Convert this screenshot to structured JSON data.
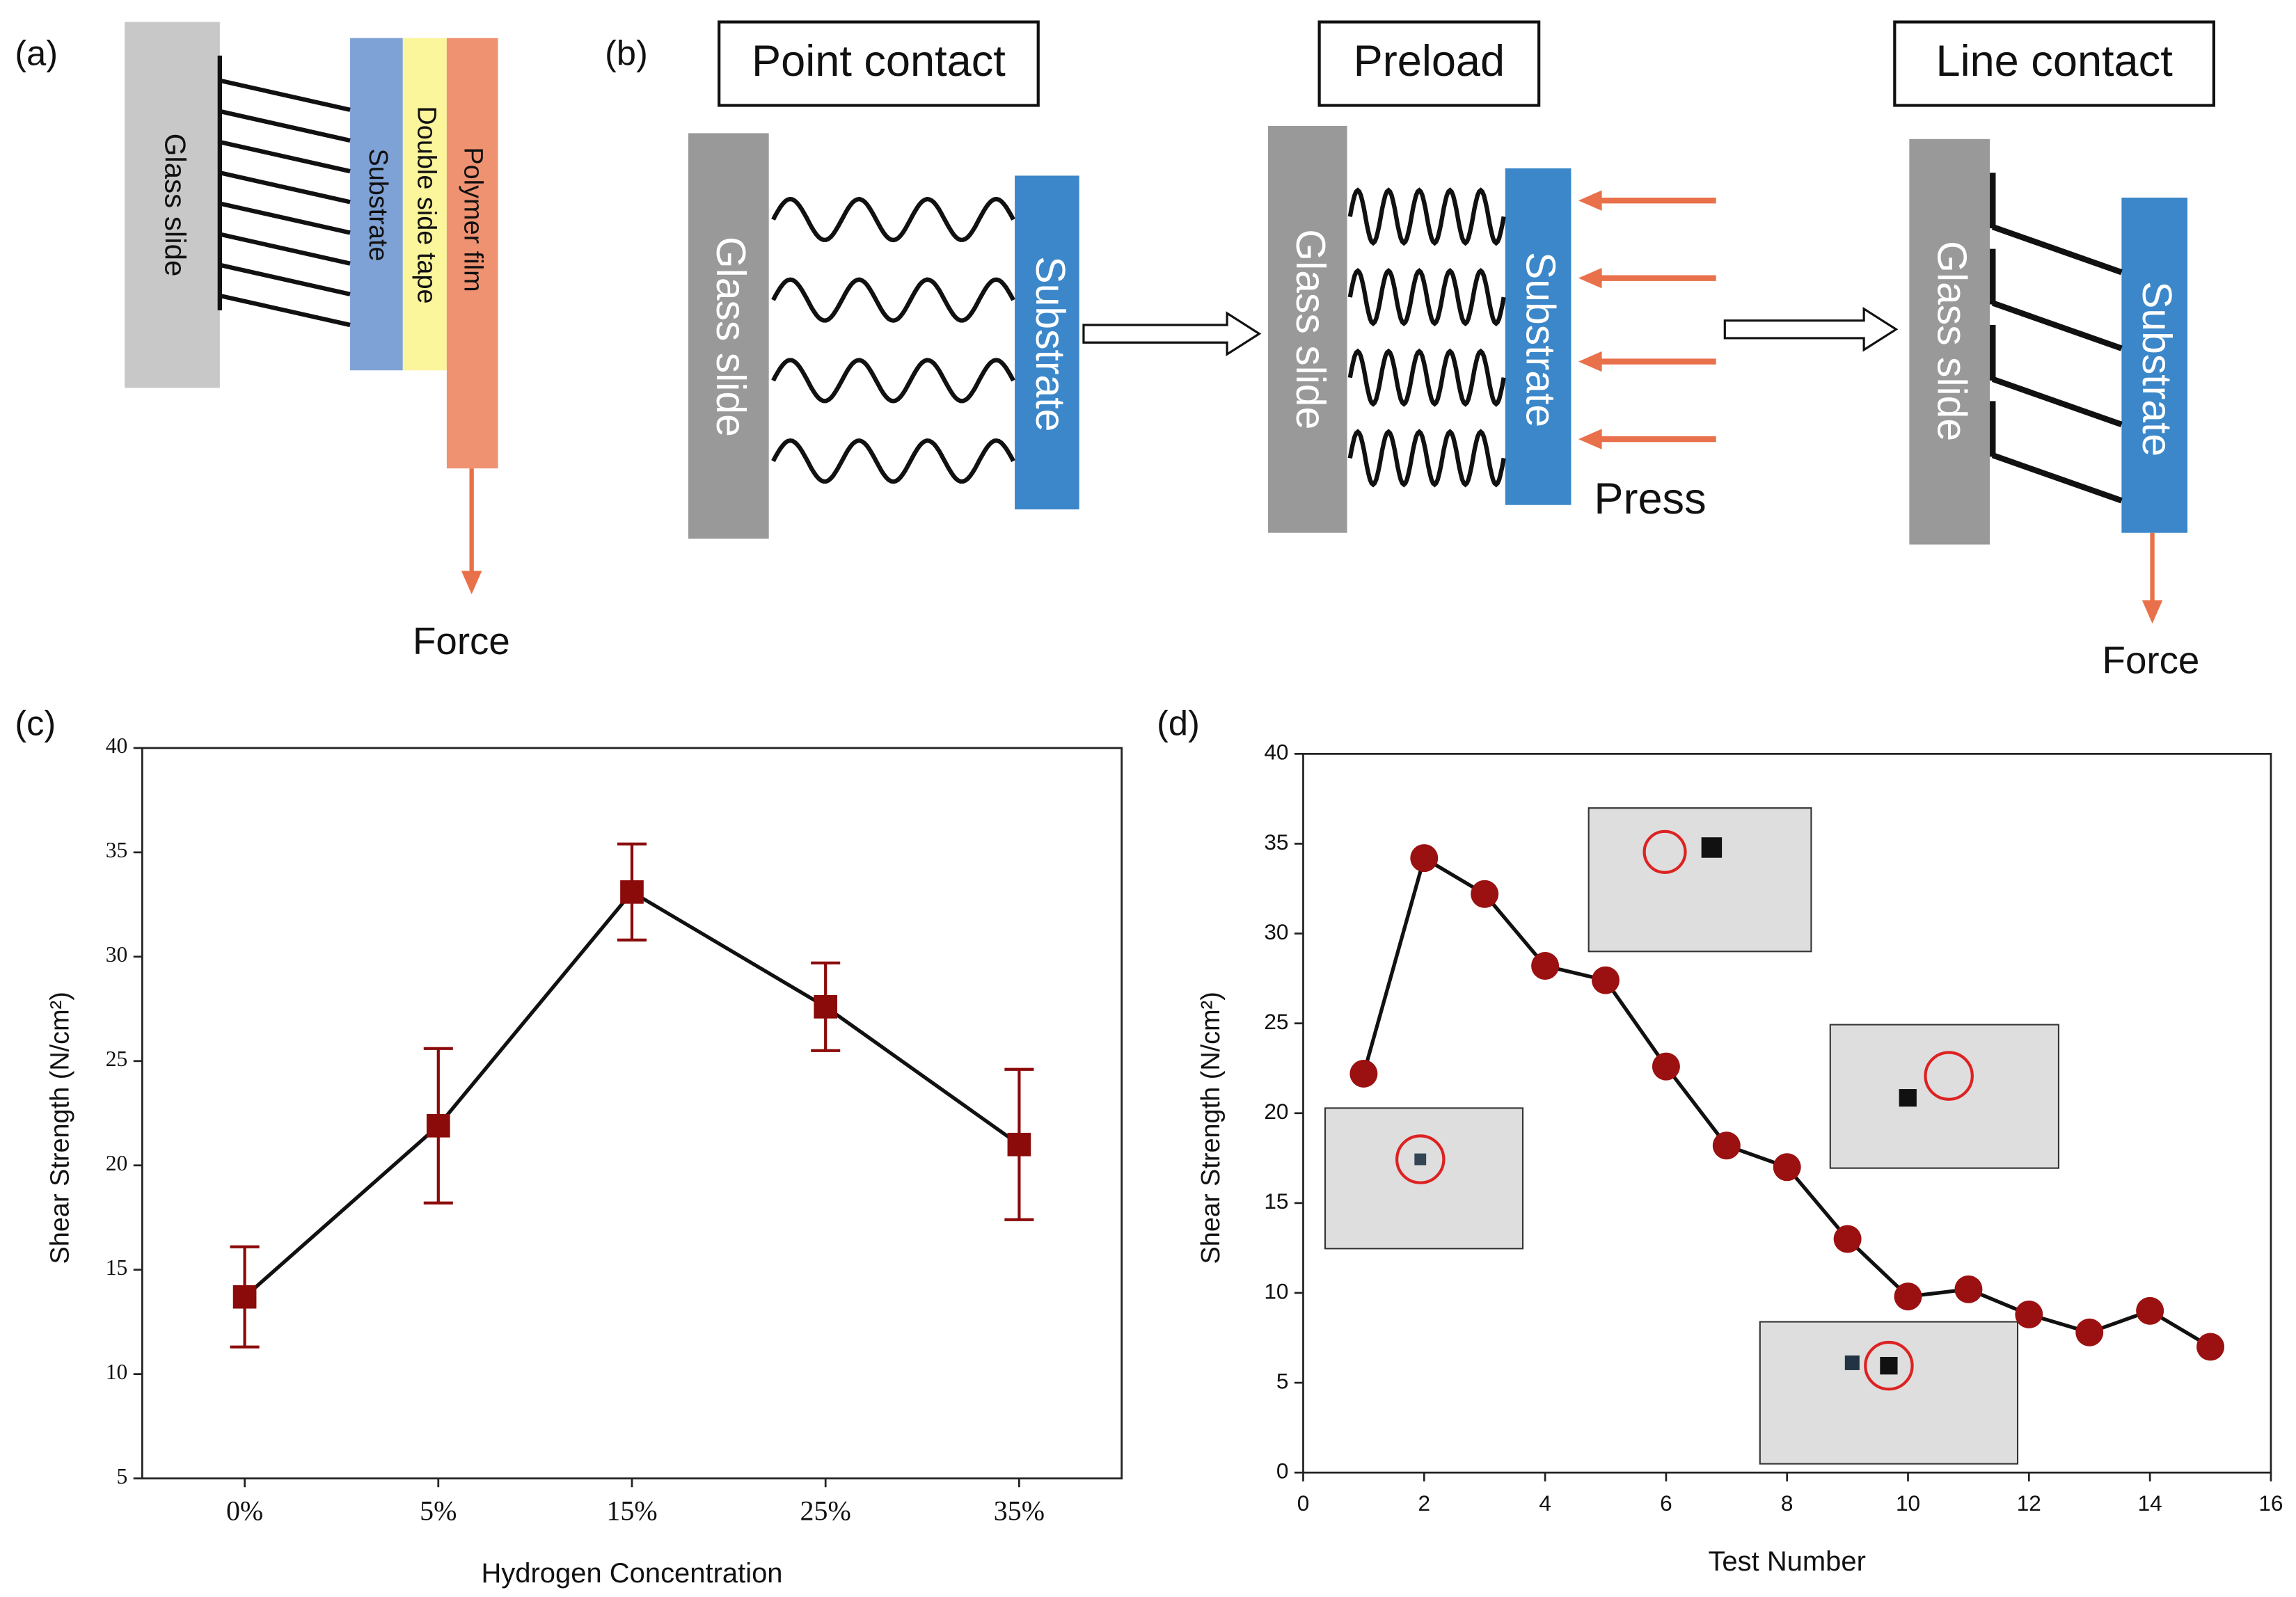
{
  "panel_labels": [
    "(a)",
    "(b)",
    "(c)",
    "(d)"
  ],
  "diagram_a": {
    "glass": "Glass slide",
    "substrate": "Substrate",
    "tape": "Double side tape",
    "film": "Polymer film",
    "force": "Force"
  },
  "diagram_b": {
    "stages": [
      {
        "title": "Point contact",
        "glass": "Glass slide",
        "substrate": "Substrate"
      },
      {
        "title": "Preload",
        "glass": "Glass slide",
        "substrate": "Substrate",
        "press": "Press"
      },
      {
        "title": "Line contact",
        "glass": "Glass slide",
        "substrate": "Substrate",
        "force": "Force"
      }
    ]
  },
  "chart_data": [
    {
      "type": "line",
      "x_label": "Hydrogen Concentration",
      "y_label": "Shear Strength (N/cm²)",
      "categories": [
        "0%",
        "5%",
        "15%",
        "25%",
        "35%"
      ],
      "series": [
        {
          "color": "#8b0a0a",
          "values": [
            13.7,
            21.9,
            33.1,
            27.6,
            21.0
          ],
          "errors": [
            2.4,
            3.7,
            2.3,
            2.1,
            3.6
          ]
        }
      ],
      "ylim": [
        5,
        40
      ],
      "yticks": [
        5,
        10,
        15,
        20,
        25,
        30,
        35,
        40
      ]
    },
    {
      "type": "scatter-line",
      "x_label": "Test Number",
      "y_label": "Shear Strength (N/cm²)",
      "x": [
        1,
        2,
        3,
        4,
        5,
        6,
        7,
        8,
        9,
        10,
        11,
        12,
        13,
        14,
        15
      ],
      "series": [
        {
          "color": "#9b1010",
          "values": [
            22.2,
            34.2,
            32.2,
            28.2,
            27.4,
            22.6,
            18.2,
            17.0,
            13.0,
            9.8,
            10.2,
            8.8,
            7.8,
            9.0,
            7.0
          ]
        }
      ],
      "xlim": [
        0,
        16
      ],
      "xticks": [
        0,
        2,
        4,
        6,
        8,
        10,
        12,
        14,
        16
      ],
      "ylim": [
        0,
        40
      ],
      "yticks": [
        0,
        5,
        10,
        15,
        20,
        25,
        30,
        35,
        40
      ]
    }
  ]
}
